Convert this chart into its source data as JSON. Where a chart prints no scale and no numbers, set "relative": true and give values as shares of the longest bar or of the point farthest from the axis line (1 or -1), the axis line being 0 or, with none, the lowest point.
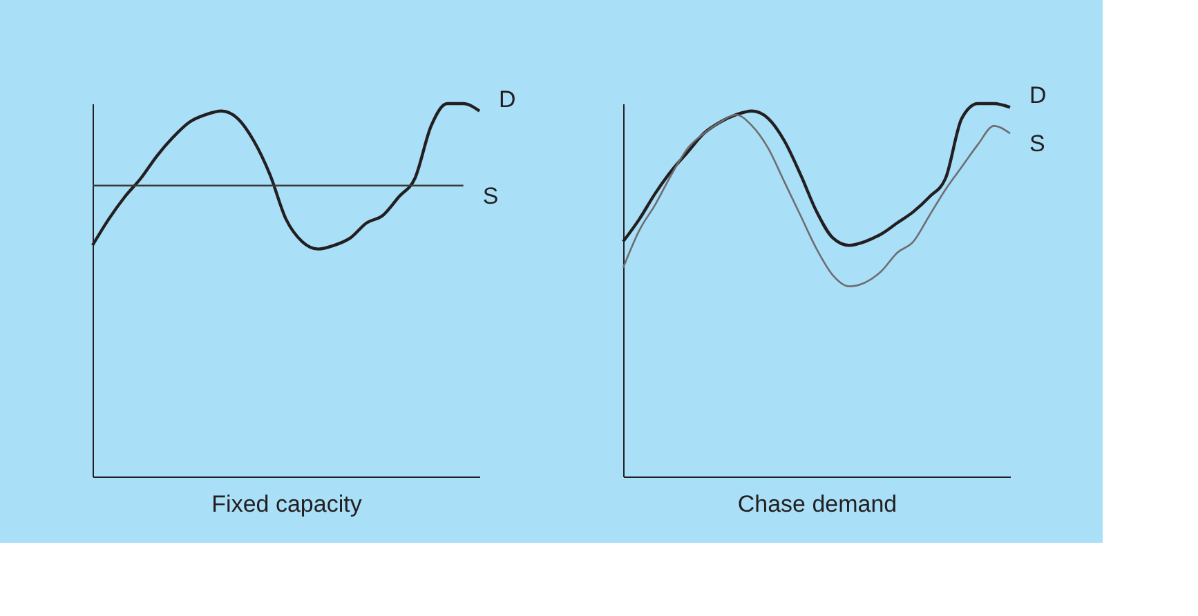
{
  "chart_data": [
    {
      "type": "line",
      "relative": true,
      "xlabel": "Fixed capacity",
      "tick_labels": false,
      "grid": false,
      "marker": "none",
      "categories": [
        null,
        null,
        null,
        null,
        null,
        null,
        null,
        null,
        null,
        null,
        null,
        null,
        null,
        null,
        null,
        null,
        null,
        null,
        null,
        null,
        null,
        null,
        null,
        null,
        null
      ],
      "series": [
        {
          "name": "D",
          "color": "#231f20",
          "values": [
            0.62,
            0.69,
            0.75,
            0.8,
            0.86,
            0.91,
            0.95,
            0.97,
            0.98,
            0.96,
            0.9,
            0.81,
            0.69,
            0.63,
            0.61,
            0.62,
            0.64,
            0.68,
            0.7,
            0.75,
            0.8,
            0.94,
            1.0,
            1.0,
            0.98
          ]
        },
        {
          "name": "S",
          "color": "#3a3a3a",
          "values": [
            0.78,
            0.78,
            0.78,
            0.78,
            0.78,
            0.78,
            0.78,
            0.78,
            0.78,
            0.78,
            0.78,
            0.78,
            0.78,
            0.78,
            0.78,
            0.78,
            0.78,
            0.78,
            0.78,
            0.78,
            0.78,
            0.78,
            0.78,
            0.78,
            null
          ]
        }
      ]
    },
    {
      "type": "line",
      "relative": true,
      "xlabel": "Chase demand",
      "tick_labels": false,
      "grid": false,
      "marker": "none",
      "categories": [
        null,
        null,
        null,
        null,
        null,
        null,
        null,
        null,
        null,
        null,
        null,
        null,
        null,
        null,
        null,
        null,
        null,
        null,
        null,
        null,
        null,
        null,
        null,
        null,
        null
      ],
      "series": [
        {
          "name": "D",
          "color": "#231f20",
          "values": [
            0.63,
            0.69,
            0.76,
            0.82,
            0.87,
            0.92,
            0.95,
            0.97,
            0.98,
            0.96,
            0.9,
            0.81,
            0.71,
            0.64,
            0.62,
            0.63,
            0.65,
            0.68,
            0.71,
            0.75,
            0.8,
            0.96,
            1.0,
            1.0,
            0.99
          ]
        },
        {
          "name": "S",
          "color": "#6d6e71",
          "values": [
            0.56,
            0.66,
            0.73,
            0.81,
            0.88,
            0.92,
            0.95,
            0.97,
            0.94,
            0.88,
            0.79,
            0.7,
            0.61,
            0.54,
            0.51,
            0.52,
            0.55,
            0.6,
            0.63,
            0.7,
            0.77,
            0.83,
            0.89,
            0.94,
            0.92
          ]
        }
      ]
    }
  ]
}
